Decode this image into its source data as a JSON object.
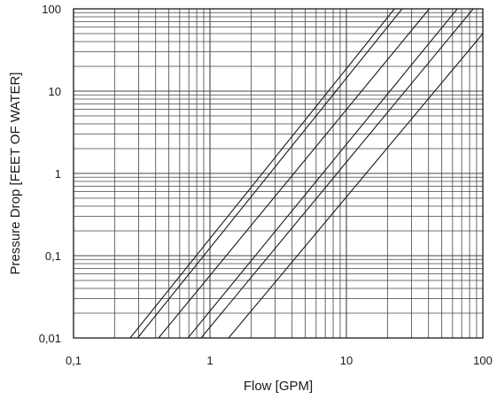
{
  "chart_data": {
    "type": "line",
    "title": "",
    "xlabel": "Flow  [GPM]",
    "ylabel": "Pressure Drop [FEET OF WATER]",
    "x_scale": "log",
    "y_scale": "log",
    "xlim": [
      0.1,
      100
    ],
    "ylim": [
      0.01,
      100
    ],
    "x_ticks": [
      "0,1",
      "1",
      "10",
      "100"
    ],
    "y_ticks": [
      "0,01",
      "0,1",
      "1",
      "10",
      "100"
    ],
    "grid": true,
    "legend": "none",
    "colors": {
      "line": "#1a1a1a",
      "grid": "#444444",
      "background": "#ffffff"
    },
    "series": [
      {
        "x": [
          0.26,
          22.5
        ],
        "y": [
          0.01,
          100
        ]
      },
      {
        "x": [
          0.295,
          25.6
        ],
        "y": [
          0.01,
          100
        ]
      },
      {
        "x": [
          0.42,
          40.5
        ],
        "y": [
          0.01,
          100
        ]
      },
      {
        "x": [
          0.69,
          65
        ],
        "y": [
          0.01,
          100
        ]
      },
      {
        "x": [
          0.86,
          85
        ],
        "y": [
          0.01,
          100
        ]
      },
      {
        "x": [
          1.37,
          100
        ],
        "y": [
          0.01,
          50
        ]
      }
    ]
  }
}
